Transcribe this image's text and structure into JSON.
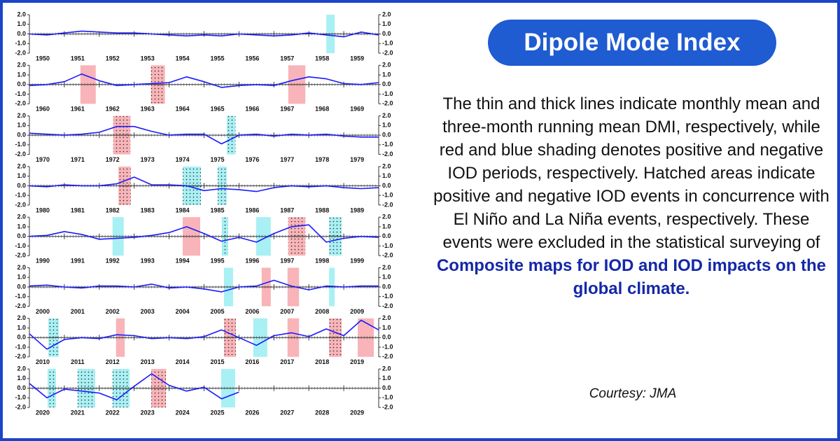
{
  "title": "Dipole Mode Index",
  "description": {
    "text": "The thin and thick lines indicate monthly mean and three-month running mean DMI, respectively, while red and blue shading denotes positive and negative IOD periods, respectively. Hatched areas indicate positive and negative IOD events in concurrence with El Niño and La Niña events, respectively. These events were excluded in the statistical surveying of",
    "link": "Composite maps for IOD and IOD impacts on the global climate."
  },
  "credit": "Courtesy: JMA",
  "chart_data": [
    {
      "type": "line",
      "xlim": [
        1950,
        1960
      ],
      "xticks": [
        1950,
        1951,
        1952,
        1953,
        1954,
        1955,
        1956,
        1957,
        1958,
        1959
      ],
      "ylim": [
        -2,
        2
      ],
      "yticks": [
        {
          "value": 2,
          "label": "2.0"
        },
        {
          "value": 1,
          "label": "1.0"
        },
        {
          "value": 0,
          "label": "0.0"
        },
        {
          "value": -1,
          "label": "-1.0"
        },
        {
          "value": -2,
          "label": "-2.0"
        }
      ],
      "x": [
        1950,
        1950.5,
        1951,
        1951.5,
        1952,
        1952.5,
        1953,
        1953.5,
        1954,
        1954.5,
        1955,
        1955.5,
        1956,
        1956.5,
        1957,
        1957.5,
        1958,
        1958.5,
        1959,
        1959.5,
        1960
      ],
      "series": [
        {
          "color": "#1a1aff",
          "values": [
            0,
            -0.1,
            0.1,
            0.3,
            0.2,
            0.1,
            0.1,
            0,
            -0.1,
            -0.2,
            -0.1,
            -0.2,
            0,
            -0.1,
            -0.2,
            -0.1,
            0.1,
            -0.1,
            -0.3,
            0.2,
            -0.1
          ]
        }
      ],
      "spans": [
        {
          "x": [
            1958.5,
            1958.74
          ],
          "color": "#a8f0f4",
          "hatched": false
        }
      ]
    },
    {
      "type": "line",
      "xlim": [
        1960,
        1970
      ],
      "xticks": [
        1960,
        1961,
        1962,
        1963,
        1964,
        1965,
        1966,
        1967,
        1968,
        1969
      ],
      "ylim": [
        -2,
        2
      ],
      "yticks": [
        {
          "value": 2,
          "label": "2.0"
        },
        {
          "value": 1,
          "label": "1.0"
        },
        {
          "value": 0,
          "label": "0.0"
        },
        {
          "value": -1,
          "label": "-1.0"
        },
        {
          "value": -2,
          "label": "-2.0"
        }
      ],
      "x": [
        1960,
        1960.5,
        1961,
        1961.5,
        1962,
        1962.5,
        1963,
        1963.5,
        1964,
        1964.5,
        1965,
        1965.5,
        1966,
        1966.5,
        1967,
        1967.5,
        1968,
        1968.5,
        1969,
        1969.5,
        1970
      ],
      "series": [
        {
          "color": "#1a1aff",
          "values": [
            -0.1,
            0,
            0.3,
            1.1,
            0.4,
            -0.1,
            0,
            0.1,
            0.2,
            0.8,
            0.3,
            -0.3,
            -0.1,
            0,
            -0.1,
            0.4,
            0.8,
            0.6,
            0.1,
            0,
            0.2
          ]
        }
      ],
      "spans": [
        {
          "x": [
            1961.46,
            1961.9
          ],
          "color": "#f8b4b8",
          "hatched": false
        },
        {
          "x": [
            1963.48,
            1963.88
          ],
          "color": "#f8b4b8",
          "hatched": true
        },
        {
          "x": [
            1967.41,
            1967.9
          ],
          "color": "#f8b4b8",
          "hatched": false
        }
      ]
    },
    {
      "type": "line",
      "xlim": [
        1970,
        1980
      ],
      "xticks": [
        1970,
        1971,
        1972,
        1973,
        1974,
        1975,
        1976,
        1977,
        1978,
        1979
      ],
      "ylim": [
        -2,
        2
      ],
      "yticks": [
        {
          "value": 2,
          "label": "2.0"
        },
        {
          "value": 1,
          "label": "1.0"
        },
        {
          "value": 0,
          "label": "0.0"
        },
        {
          "value": -1,
          "label": "-1.0"
        },
        {
          "value": -2,
          "label": "-2.0"
        }
      ],
      "x": [
        1970,
        1970.5,
        1971,
        1971.5,
        1972,
        1972.5,
        1973,
        1973.5,
        1974,
        1974.5,
        1975,
        1975.5,
        1976,
        1976.5,
        1977,
        1977.5,
        1978,
        1978.5,
        1979,
        1979.5,
        1980
      ],
      "series": [
        {
          "color": "#1a1aff",
          "values": [
            0.2,
            0.1,
            0,
            0.1,
            0.3,
            0.9,
            0.9,
            0.4,
            0,
            0.1,
            0.1,
            -0.9,
            0,
            0.1,
            -0.1,
            0.1,
            0,
            0.1,
            -0.1,
            -0.2,
            -0.2
          ]
        }
      ],
      "spans": [
        {
          "x": [
            1972.4,
            1972.89
          ],
          "color": "#f8b4b8",
          "hatched": true
        },
        {
          "x": [
            1975.65,
            1975.9
          ],
          "color": "#a8f0f4",
          "hatched": true
        }
      ]
    },
    {
      "type": "line",
      "xlim": [
        1980,
        1990
      ],
      "xticks": [
        1980,
        1981,
        1982,
        1983,
        1984,
        1985,
        1986,
        1987,
        1988,
        1989
      ],
      "ylim": [
        -2,
        2
      ],
      "yticks": [
        {
          "value": 2,
          "label": "2.0"
        },
        {
          "value": 1,
          "label": "1.0"
        },
        {
          "value": 0,
          "label": "0.0"
        },
        {
          "value": -1,
          "label": "-1.0"
        },
        {
          "value": -2,
          "label": "-2.0"
        }
      ],
      "x": [
        1980,
        1980.5,
        1981,
        1981.5,
        1982,
        1982.5,
        1983,
        1983.5,
        1984,
        1984.5,
        1985,
        1985.5,
        1986,
        1986.5,
        1987,
        1987.5,
        1988,
        1988.5,
        1989,
        1989.5,
        1990
      ],
      "series": [
        {
          "color": "#1a1aff",
          "values": [
            0,
            -0.1,
            0.1,
            0,
            0,
            0.2,
            0.9,
            0.1,
            0.1,
            0,
            -0.5,
            -0.3,
            -0.4,
            -0.6,
            -0.2,
            0,
            -0.1,
            0,
            -0.2,
            -0.3,
            -0.2
          ]
        }
      ],
      "spans": [
        {
          "x": [
            1982.55,
            1982.9
          ],
          "color": "#f8b4b8",
          "hatched": true
        },
        {
          "x": [
            1984.39,
            1984.91
          ],
          "color": "#a8f0f4",
          "hatched": true
        },
        {
          "x": [
            1985.39,
            1985.65
          ],
          "color": "#a8f0f4",
          "hatched": true
        }
      ]
    },
    {
      "type": "line",
      "xlim": [
        1990,
        2000
      ],
      "xticks": [
        1990,
        1991,
        1992,
        1993,
        1994,
        1995,
        1996,
        1997,
        1998,
        1999
      ],
      "ylim": [
        -2,
        2
      ],
      "yticks": [
        {
          "value": 2,
          "label": "2.0"
        },
        {
          "value": 1,
          "label": "1.0"
        },
        {
          "value": 0,
          "label": "0.0"
        },
        {
          "value": -1,
          "label": "-1.0"
        },
        {
          "value": -2,
          "label": "-2.0"
        }
      ],
      "x": [
        1990,
        1990.5,
        1991,
        1991.5,
        1992,
        1992.5,
        1993,
        1993.5,
        1994,
        1994.5,
        1995,
        1995.5,
        1996,
        1996.5,
        1997,
        1997.5,
        1998,
        1998.5,
        1999,
        1999.5,
        2000
      ],
      "series": [
        {
          "color": "#1a1aff",
          "values": [
            0,
            0.1,
            0.5,
            0.2,
            -0.3,
            -0.2,
            -0.1,
            0.1,
            0.4,
            1.0,
            0.3,
            -0.5,
            -0.1,
            -0.6,
            0.3,
            1.0,
            1.2,
            -0.6,
            -0.2,
            0,
            -0.1
          ]
        }
      ],
      "spans": [
        {
          "x": [
            1992.38,
            1992.7
          ],
          "color": "#a8f0f4",
          "hatched": false
        },
        {
          "x": [
            1994.39,
            1994.89
          ],
          "color": "#f8b4b8",
          "hatched": false
        },
        {
          "x": [
            1995.51,
            1995.69
          ],
          "color": "#a8f0f4",
          "hatched": true
        },
        {
          "x": [
            1996.49,
            1996.91
          ],
          "color": "#a8f0f4",
          "hatched": false
        },
        {
          "x": [
            1997.41,
            1997.9
          ],
          "color": "#f8b4b8",
          "hatched": true
        },
        {
          "x": [
            1998.58,
            1998.94
          ],
          "color": "#a8f0f4",
          "hatched": true
        }
      ]
    },
    {
      "type": "line",
      "xlim": [
        2000,
        2010
      ],
      "xticks": [
        2000,
        2001,
        2002,
        2003,
        2004,
        2005,
        2006,
        2007,
        2008,
        2009
      ],
      "ylim": [
        -2,
        2
      ],
      "yticks": [
        {
          "value": 2,
          "label": "2.0"
        },
        {
          "value": 1,
          "label": "1.0"
        },
        {
          "value": 0,
          "label": "0.0"
        },
        {
          "value": -1,
          "label": "-1.0"
        },
        {
          "value": -2,
          "label": "-2.0"
        }
      ],
      "x": [
        2000,
        2000.5,
        2001,
        2001.5,
        2002,
        2002.5,
        2003,
        2003.5,
        2004,
        2004.5,
        2005,
        2005.5,
        2006,
        2006.5,
        2007,
        2007.5,
        2008,
        2008.5,
        2009,
        2009.5,
        2010
      ],
      "series": [
        {
          "color": "#1a1aff",
          "values": [
            0.1,
            0.2,
            0,
            -0.1,
            0.1,
            0.1,
            0,
            0.3,
            -0.1,
            0,
            -0.2,
            -0.5,
            0,
            0.1,
            0.7,
            0.1,
            -0.3,
            0.1,
            0,
            0.1,
            0.1
          ]
        }
      ],
      "spans": [
        {
          "x": [
            2005.57,
            2005.83
          ],
          "color": "#a8f0f4",
          "hatched": false
        },
        {
          "x": [
            2006.65,
            2006.91
          ],
          "color": "#f8b4b8",
          "hatched": false
        },
        {
          "x": [
            2007.39,
            2007.72
          ],
          "color": "#f8b4b8",
          "hatched": false
        },
        {
          "x": [
            2008.58,
            2008.74
          ],
          "color": "#a8f0f4",
          "hatched": false
        }
      ]
    },
    {
      "type": "line",
      "xlim": [
        2010,
        2020
      ],
      "xticks": [
        2010,
        2011,
        2012,
        2013,
        2014,
        2015,
        2016,
        2017,
        2018,
        2019
      ],
      "ylim": [
        -2,
        2
      ],
      "yticks": [
        {
          "value": 2,
          "label": "2.0"
        },
        {
          "value": 1,
          "label": "1.0"
        },
        {
          "value": 0,
          "label": "0.0"
        },
        {
          "value": -1,
          "label": "-1.0"
        },
        {
          "value": -2,
          "label": "-2.0"
        }
      ],
      "x": [
        2010,
        2010.5,
        2011,
        2011.5,
        2012,
        2012.5,
        2013,
        2013.5,
        2014,
        2014.5,
        2015,
        2015.5,
        2016,
        2016.5,
        2017,
        2017.5,
        2018,
        2018.5,
        2019,
        2019.5,
        2020
      ],
      "series": [
        {
          "color": "#1a1aff",
          "values": [
            0.4,
            -1.2,
            -0.2,
            0,
            -0.1,
            0.3,
            0.2,
            -0.1,
            0,
            -0.1,
            0.1,
            0.8,
            0,
            -0.8,
            0.2,
            0.5,
            0.1,
            0.9,
            0.2,
            1.8,
            0.8
          ]
        }
      ],
      "spans": [
        {
          "x": [
            2010.54,
            2010.84
          ],
          "color": "#a8f0f4",
          "hatched": true
        },
        {
          "x": [
            2012.48,
            2012.73
          ],
          "color": "#f8b4b8",
          "hatched": false
        },
        {
          "x": [
            2015.57,
            2015.91
          ],
          "color": "#f8b4b8",
          "hatched": true
        },
        {
          "x": [
            2016.41,
            2016.81
          ],
          "color": "#a8f0f4",
          "hatched": false
        },
        {
          "x": [
            2017.39,
            2017.72
          ],
          "color": "#f8b4b8",
          "hatched": false
        },
        {
          "x": [
            2018.58,
            2018.94
          ],
          "color": "#f8b4b8",
          "hatched": true
        },
        {
          "x": [
            2019.4,
            2019.86
          ],
          "color": "#f8b4b8",
          "hatched": false
        }
      ]
    },
    {
      "type": "line",
      "xlim": [
        2020,
        2030
      ],
      "xticks": [
        2020,
        2021,
        2022,
        2023,
        2024,
        2025,
        2026,
        2027,
        2028,
        2029
      ],
      "ylim": [
        -2,
        2
      ],
      "yticks": [
        {
          "value": 2,
          "label": "2.0"
        },
        {
          "value": 1,
          "label": "1.0"
        },
        {
          "value": 0,
          "label": "0.0"
        },
        {
          "value": -1,
          "label": "-1.0"
        },
        {
          "value": -2,
          "label": "-2.0"
        }
      ],
      "x": [
        2020,
        2020.5,
        2021,
        2021.5,
        2022,
        2022.5,
        2023,
        2023.5,
        2024,
        2024.5,
        2025,
        2025.5,
        2026
      ],
      "series": [
        {
          "color": "#1a1aff",
          "values": [
            0.5,
            -1.0,
            -0.1,
            -0.3,
            -0.5,
            -1.2,
            0.2,
            1.5,
            0.3,
            -0.3,
            0.1,
            -1.1,
            -0.4
          ]
        }
      ],
      "spans": [
        {
          "x": [
            2020.52,
            2020.76
          ],
          "color": "#a8f0f4",
          "hatched": true
        },
        {
          "x": [
            2021.38,
            2021.88
          ],
          "color": "#a8f0f4",
          "hatched": true
        },
        {
          "x": [
            2022.38,
            2022.87
          ],
          "color": "#a8f0f4",
          "hatched": true
        },
        {
          "x": [
            2023.49,
            2023.91
          ],
          "color": "#f8b4b8",
          "hatched": true
        },
        {
          "x": [
            2025.49,
            2025.89
          ],
          "color": "#a8f0f4",
          "hatched": false
        }
      ]
    }
  ]
}
